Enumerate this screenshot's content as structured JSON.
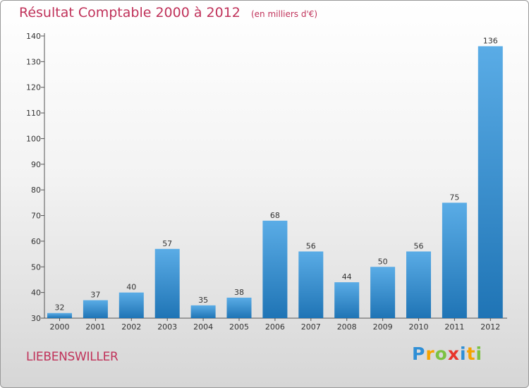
{
  "chart_data": {
    "type": "bar",
    "title": "Résultat Comptable 2000 à 2012",
    "subtitle": "(en milliers d'€)",
    "categories": [
      "2000",
      "2001",
      "2002",
      "2003",
      "2004",
      "2005",
      "2006",
      "2007",
      "2008",
      "2009",
      "2010",
      "2011",
      "2012"
    ],
    "values": [
      32,
      37,
      40,
      57,
      35,
      38,
      68,
      56,
      44,
      50,
      56,
      75,
      136
    ],
    "ylim": [
      30,
      140
    ],
    "yticks": [
      30,
      40,
      50,
      60,
      70,
      80,
      90,
      100,
      110,
      120,
      130,
      140
    ],
    "xlabel": "",
    "ylabel": "",
    "grid": false,
    "bar_color_top": "#5aace6",
    "bar_color_bottom": "#1f74b5"
  },
  "commune": "LIEBENSWILLER",
  "logo": {
    "letters": [
      "P",
      "r",
      "o",
      "x",
      "i",
      "t",
      "i"
    ],
    "colors": [
      "#2f8fd6",
      "#f5a300",
      "#7cc242",
      "#e8352b",
      "#2f8fd6",
      "#f5a300",
      "#7cc242"
    ]
  }
}
